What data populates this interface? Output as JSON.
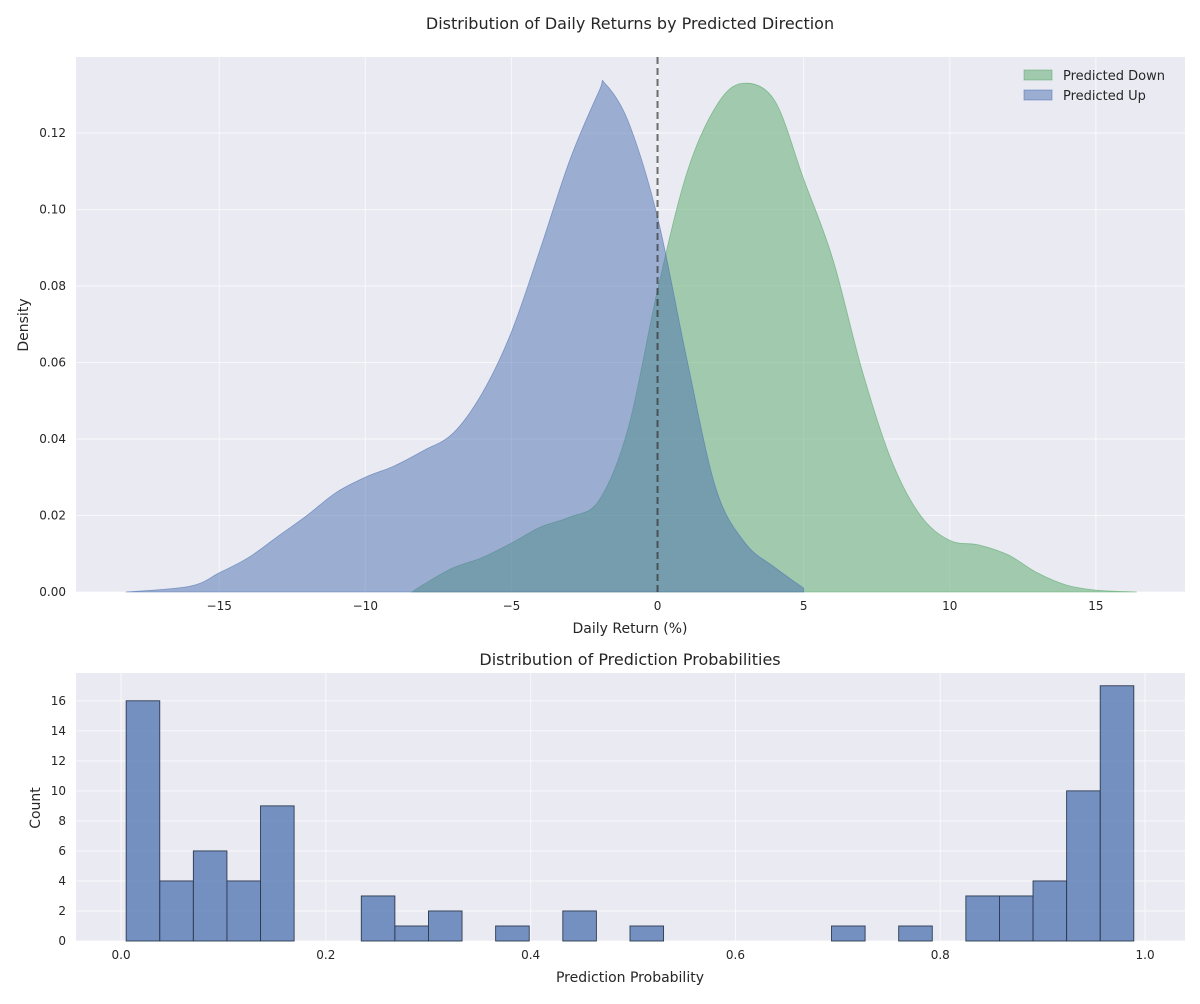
{
  "chart_data": [
    {
      "type": "area",
      "title": "Distribution of Daily Returns by Predicted Direction",
      "xlabel": "Daily Return (%)",
      "ylabel": "Density",
      "xlim": [
        -19.9,
        18.05
      ],
      "ylim": [
        0,
        0.1399
      ],
      "xticks": [
        -15,
        -10,
        -5,
        0,
        5,
        10,
        15
      ],
      "xtick_labels": [
        "−15",
        "−10",
        "−5",
        "0",
        "5",
        "10",
        "15"
      ],
      "yticks": [
        0,
        0.02,
        0.04,
        0.06,
        0.08,
        0.1,
        0.12
      ],
      "ytick_labels": [
        "0.00",
        "0.02",
        "0.04",
        "0.06",
        "0.08",
        "0.10",
        "0.12"
      ],
      "grid": true,
      "legend_position": "top-right",
      "vline": {
        "x": 0,
        "style": "dashed",
        "color": "#333333"
      },
      "series": [
        {
          "name": "Predicted Down",
          "color": "#55a868",
          "x": [
            -8.4,
            -8,
            -7,
            -6,
            -5,
            -4,
            -3,
            -2,
            -1,
            0,
            1,
            2,
            2.9,
            4,
            5,
            6,
            7,
            8,
            9,
            10,
            11,
            12,
            13,
            14,
            15,
            16.4
          ],
          "y": [
            0,
            0.002,
            0.0063,
            0.009,
            0.0128,
            0.017,
            0.0196,
            0.024,
            0.043,
            0.079,
            0.1095,
            0.127,
            0.133,
            0.1286,
            0.108,
            0.087,
            0.058,
            0.0345,
            0.02,
            0.0135,
            0.0123,
            0.0097,
            0.005,
            0.0018,
            0.0005,
            0
          ]
        },
        {
          "name": "Predicted Up",
          "color": "#4c72b0",
          "x": [
            -18.2,
            -16,
            -15,
            -14,
            -13,
            -12,
            -11,
            -10,
            -9,
            -8,
            -7,
            -6,
            -5,
            -4,
            -3,
            -2,
            -1.8,
            -1,
            0,
            1,
            2,
            3,
            4,
            5
          ],
          "y": [
            0,
            0.0015,
            0.005,
            0.009,
            0.0145,
            0.02,
            0.026,
            0.03,
            0.033,
            0.037,
            0.0415,
            0.052,
            0.068,
            0.09,
            0.113,
            0.131,
            0.133,
            0.123,
            0.098,
            0.061,
            0.027,
            0.0128,
            0.0065,
            0.001
          ]
        }
      ]
    },
    {
      "type": "bar",
      "title": "Distribution of Prediction Probabilities",
      "xlabel": "Prediction Probability",
      "ylabel": "Count",
      "xlim": [
        -0.044,
        1.039
      ],
      "ylim": [
        0,
        17.85
      ],
      "bin_start": 0.005,
      "bin_width": 0.0328,
      "counts": [
        16,
        4,
        6,
        4,
        9,
        0,
        0,
        3,
        1,
        2,
        0,
        1,
        0,
        2,
        0,
        1,
        0,
        0,
        0,
        0,
        0,
        1,
        0,
        1,
        0,
        3,
        3,
        4,
        10,
        17
      ],
      "color": "#4c72b0",
      "xticks": [
        0,
        0.2,
        0.4,
        0.6,
        0.8,
        1.0
      ],
      "xtick_labels": [
        "0.0",
        "0.2",
        "0.4",
        "0.6",
        "0.8",
        "1.0"
      ],
      "yticks": [
        0,
        2,
        4,
        6,
        8,
        10,
        12,
        14,
        16
      ],
      "ytick_labels": [
        "0",
        "2",
        "4",
        "6",
        "8",
        "10",
        "12",
        "14",
        "16"
      ],
      "grid": true
    }
  ]
}
